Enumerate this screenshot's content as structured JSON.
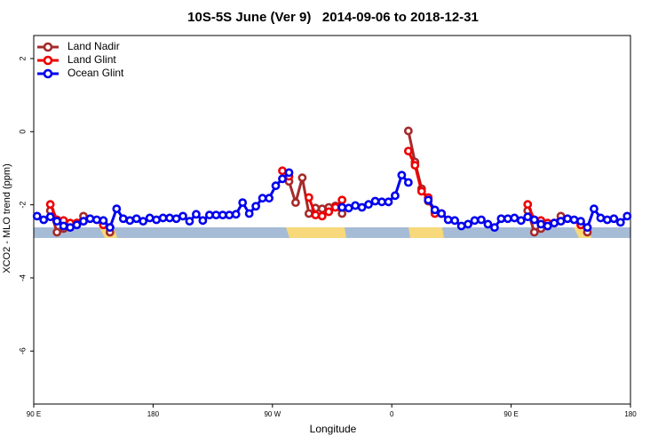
{
  "chart_data": {
    "type": "line",
    "title": "10S-5S June (Ver 9)   2014-09-06 to 2018-12-31",
    "xlabel": "Longitude",
    "ylabel": "XCO2 - MLO trend (ppm)",
    "xlim": [
      90,
      540
    ],
    "ylim": [
      -7.45,
      2.63
    ],
    "xticks": [
      {
        "value": 90,
        "label": "90 E"
      },
      180,
      {
        "value": 270,
        "label": "90 W"
      },
      {
        "value": 360,
        "label": "0"
      },
      {
        "value": 450,
        "label": "90 E"
      },
      {
        "value": 540,
        "label": "180"
      }
    ],
    "yticks": [
      2,
      0,
      -2,
      -4,
      -6
    ],
    "legend": "top-left",
    "series": [
      {
        "name": "Land Nadir",
        "color": "#a52a2a",
        "x": [
          102.5,
          107.5,
          112.5,
          117.5,
          122.5,
          127.5,
          132.5,
          137.5,
          142.5,
          147.5,
          152.5,
          282.5,
          287.5,
          292.5,
          297.5,
          302.5,
          307.5,
          312.5,
          317.5,
          322.5,
          327.5,
          372.5,
          377.5,
          382.5,
          387.5,
          392.5,
          397.5,
          402.5,
          462.5,
          467.5,
          472.5,
          477.5,
          482.5,
          487.5,
          492.5,
          497.5,
          502.5,
          507.5
        ],
        "values": [
          -2.16,
          -2.75,
          -2.65,
          -2.58,
          -2.5,
          -2.31,
          null,
          null,
          -2.5,
          -2.75,
          null,
          -1.36,
          -1.94,
          -1.26,
          -2.24,
          -2.09,
          -2.11,
          -2.07,
          -2.03,
          -2.24,
          null,
          0.02,
          -0.83,
          -1.56,
          -1.9,
          -2.19,
          -2.24,
          null,
          -2.16,
          -2.75,
          -2.65,
          -2.58,
          -2.5,
          -2.31,
          null,
          null,
          -2.5,
          -2.75
        ]
      },
      {
        "name": "Land Glint",
        "color": "#ee0000",
        "x": [
          102.5,
          107.5,
          112.5,
          117.5,
          122.5,
          127.5,
          132.5,
          137.5,
          142.5,
          147.5,
          152.5,
          277.5,
          282.5,
          287.5,
          297.5,
          302.5,
          307.5,
          312.5,
          317.5,
          322.5,
          327.5,
          372.5,
          377.5,
          382.5,
          387.5,
          392.5,
          397.5,
          402.5,
          462.5,
          467.5,
          472.5,
          477.5,
          482.5,
          487.5,
          492.5,
          497.5,
          502.5,
          507.5
        ],
        "values": [
          -1.99,
          -2.41,
          -2.43,
          -2.5,
          -2.5,
          -2.45,
          null,
          null,
          -2.55,
          -2.62,
          null,
          -1.07,
          -1.22,
          null,
          -1.8,
          -2.28,
          -2.31,
          -2.19,
          -2.07,
          -1.87,
          null,
          -0.53,
          -0.92,
          -1.63,
          -1.8,
          -2.24,
          -2.24,
          null,
          -1.99,
          -2.41,
          -2.43,
          -2.5,
          -2.5,
          -2.45,
          null,
          null,
          -2.55,
          -2.62
        ]
      },
      {
        "name": "Ocean Glint",
        "color": "#0000ee",
        "x": [
          92.5,
          97.5,
          102.5,
          107.5,
          112.5,
          117.5,
          122.5,
          127.5,
          132.5,
          137.5,
          142.5,
          147.5,
          152.5,
          157.5,
          162.5,
          167.5,
          172.5,
          177.5,
          182.5,
          187.5,
          192.5,
          197.5,
          202.5,
          207.5,
          212.5,
          217.5,
          222.5,
          227.5,
          232.5,
          237.5,
          242.5,
          247.5,
          252.5,
          257.5,
          262.5,
          267.5,
          272.5,
          277.5,
          282.5,
          287.5,
          322.5,
          327.5,
          332.5,
          337.5,
          342.5,
          347.5,
          352.5,
          357.5,
          362.5,
          367.5,
          372.5,
          377.5,
          387.5,
          392.5,
          397.5,
          402.5,
          407.5,
          412.5,
          417.5,
          422.5,
          427.5,
          432.5,
          437.5,
          442.5,
          447.5,
          452.5,
          457.5,
          462.5,
          467.5,
          472.5,
          477.5,
          482.5,
          487.5,
          492.5,
          497.5,
          502.5,
          507.5,
          512.5,
          517.5,
          522.5,
          527.5,
          532.5,
          537.5
        ],
        "values": [
          -2.31,
          -2.41,
          -2.33,
          -2.45,
          -2.58,
          -2.62,
          -2.55,
          -2.45,
          -2.38,
          -2.41,
          -2.43,
          -2.62,
          -2.11,
          -2.38,
          -2.43,
          -2.38,
          -2.45,
          -2.36,
          -2.41,
          -2.36,
          -2.36,
          -2.38,
          -2.31,
          -2.45,
          -2.26,
          -2.43,
          -2.28,
          -2.28,
          -2.28,
          -2.28,
          -2.26,
          -1.94,
          -2.24,
          -2.04,
          -1.82,
          -1.82,
          -1.48,
          -1.29,
          -1.12,
          null,
          -2.07,
          -2.09,
          -2.02,
          -2.07,
          -1.99,
          -1.9,
          -1.92,
          -1.92,
          -1.75,
          -1.19,
          -1.39,
          null,
          -1.87,
          -2.14,
          -2.24,
          -2.41,
          -2.43,
          -2.58,
          -2.53,
          -2.43,
          -2.41,
          -2.53,
          -2.62,
          -2.38,
          -2.38,
          -2.36,
          -2.43,
          -2.33,
          -2.41,
          -2.53,
          -2.58,
          -2.5,
          -2.45,
          -2.38,
          -2.41,
          -2.45,
          -2.62,
          -2.11,
          -2.36,
          -2.41,
          -2.38,
          -2.48,
          -2.31
        ]
      }
    ]
  }
}
